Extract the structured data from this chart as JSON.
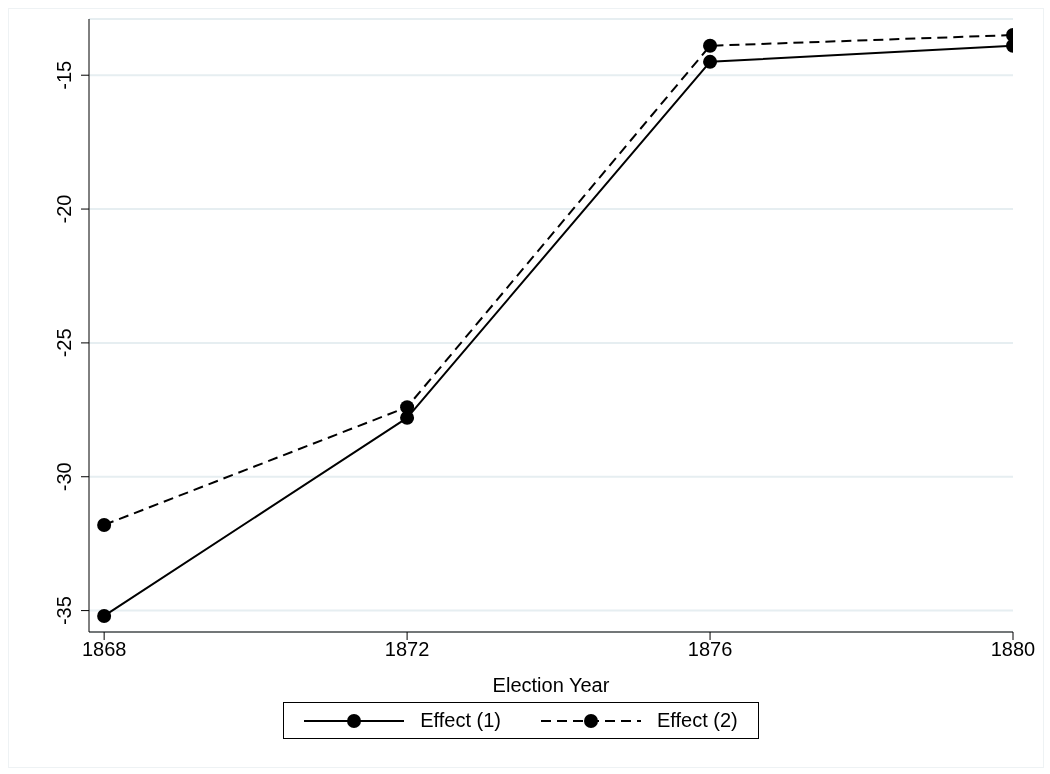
{
  "chart_data": {
    "type": "line",
    "xlabel": "Election Year",
    "x": [
      1868,
      1872,
      1876,
      1880
    ],
    "series": [
      {
        "name": "Effect (1)",
        "color": "#000000",
        "values": [
          -35.2,
          -27.8,
          -14.5,
          -13.9
        ],
        "line_style": "solid"
      },
      {
        "name": "Effect (2)",
        "color": "#000000",
        "values": [
          -31.8,
          -27.4,
          -13.9,
          -13.5
        ],
        "line_style": "dashed"
      }
    ],
    "xlim": [
      1867.8,
      1880
    ],
    "xticks": [
      1868,
      1872,
      1876,
      1880
    ],
    "ylim": [
      -35.8,
      -12.9
    ],
    "yticks": [
      -35,
      -30,
      -25,
      -20,
      -15
    ],
    "grid": "y",
    "legend": "bottom",
    "marker": "circle"
  }
}
